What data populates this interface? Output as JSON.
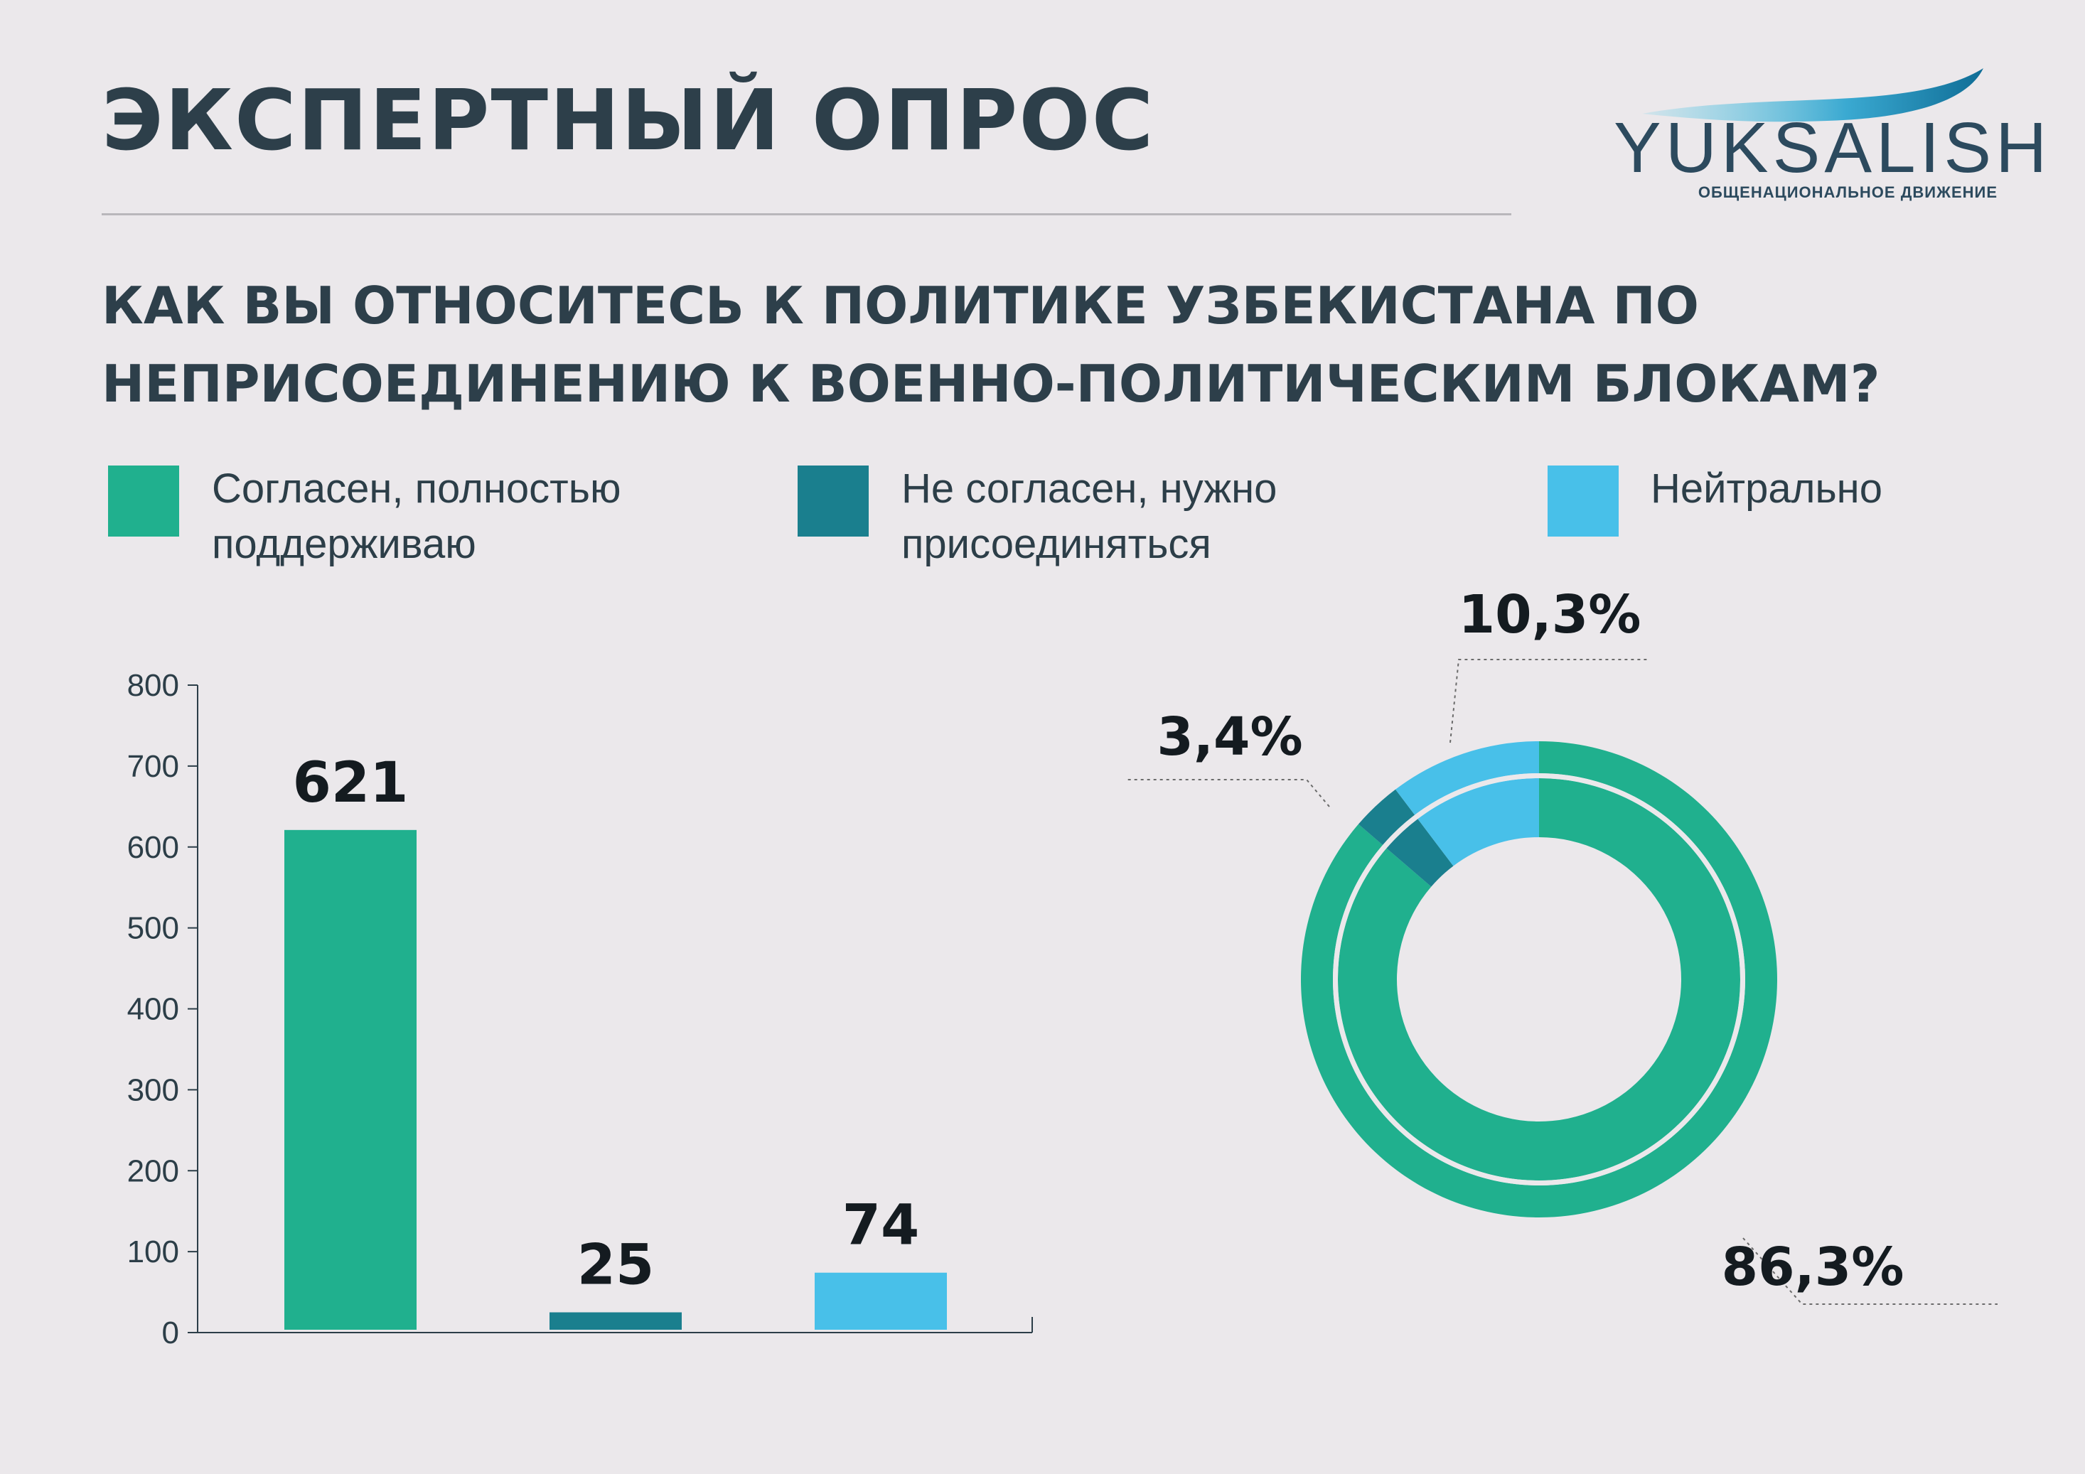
{
  "header": {
    "title": "ЭКСПЕРТНЫЙ ОПРОС"
  },
  "logo": {
    "wordmark": "YUKSALISH",
    "subtitle": "ОБЩЕНАЦИОНАЛЬНОЕ ДВИЖЕНИЕ"
  },
  "question": "КАК ВЫ ОТНОСИТЕСЬ К ПОЛИТИКЕ УЗБЕКИСТАНА ПО НЕПРИСОЕДИНЕНИЮ К ВОЕННО-ПОЛИТИЧЕСКИМ БЛОКАМ?",
  "colors": {
    "agree": "#20b08e",
    "disagree": "#1a7f8e",
    "neutral": "#48c0e9",
    "ring_gap": "#ebe8eb",
    "text": "#2c3e48"
  },
  "legend": [
    {
      "label_line1": "Согласен, полностью",
      "label_line2": "поддерживаю",
      "color": "#20b08e"
    },
    {
      "label_line1": "Не согласен, нужно",
      "label_line2": "присоединяться",
      "color": "#1a7f8e"
    },
    {
      "label_line1": "Нейтрально",
      "label_line2": "",
      "color": "#48c0e9"
    }
  ],
  "chart_data": [
    {
      "type": "bar",
      "categories": [
        "Согласен, полностью поддерживаю",
        "Не согласен, нужно присоединяться",
        "Нейтрально"
      ],
      "values": [
        621,
        25,
        74
      ],
      "data_labels": [
        "621",
        "25",
        "74"
      ],
      "colors": [
        "#20b08e",
        "#1a7f8e",
        "#48c0e9"
      ],
      "ylim": [
        0,
        800
      ],
      "yticks": [
        0,
        100,
        200,
        300,
        400,
        500,
        600,
        700,
        800
      ],
      "grid": false
    },
    {
      "type": "pie",
      "style": "donut",
      "categories": [
        "Согласен, полностью поддерживаю",
        "Не согласен, нужно присоединяться",
        "Нейтрально"
      ],
      "values": [
        86.3,
        3.4,
        10.3
      ],
      "data_labels": [
        "86,3%",
        "3,4%",
        "10,3%"
      ],
      "colors": [
        "#20b08e",
        "#1a7f8e",
        "#48c0e9"
      ]
    }
  ]
}
